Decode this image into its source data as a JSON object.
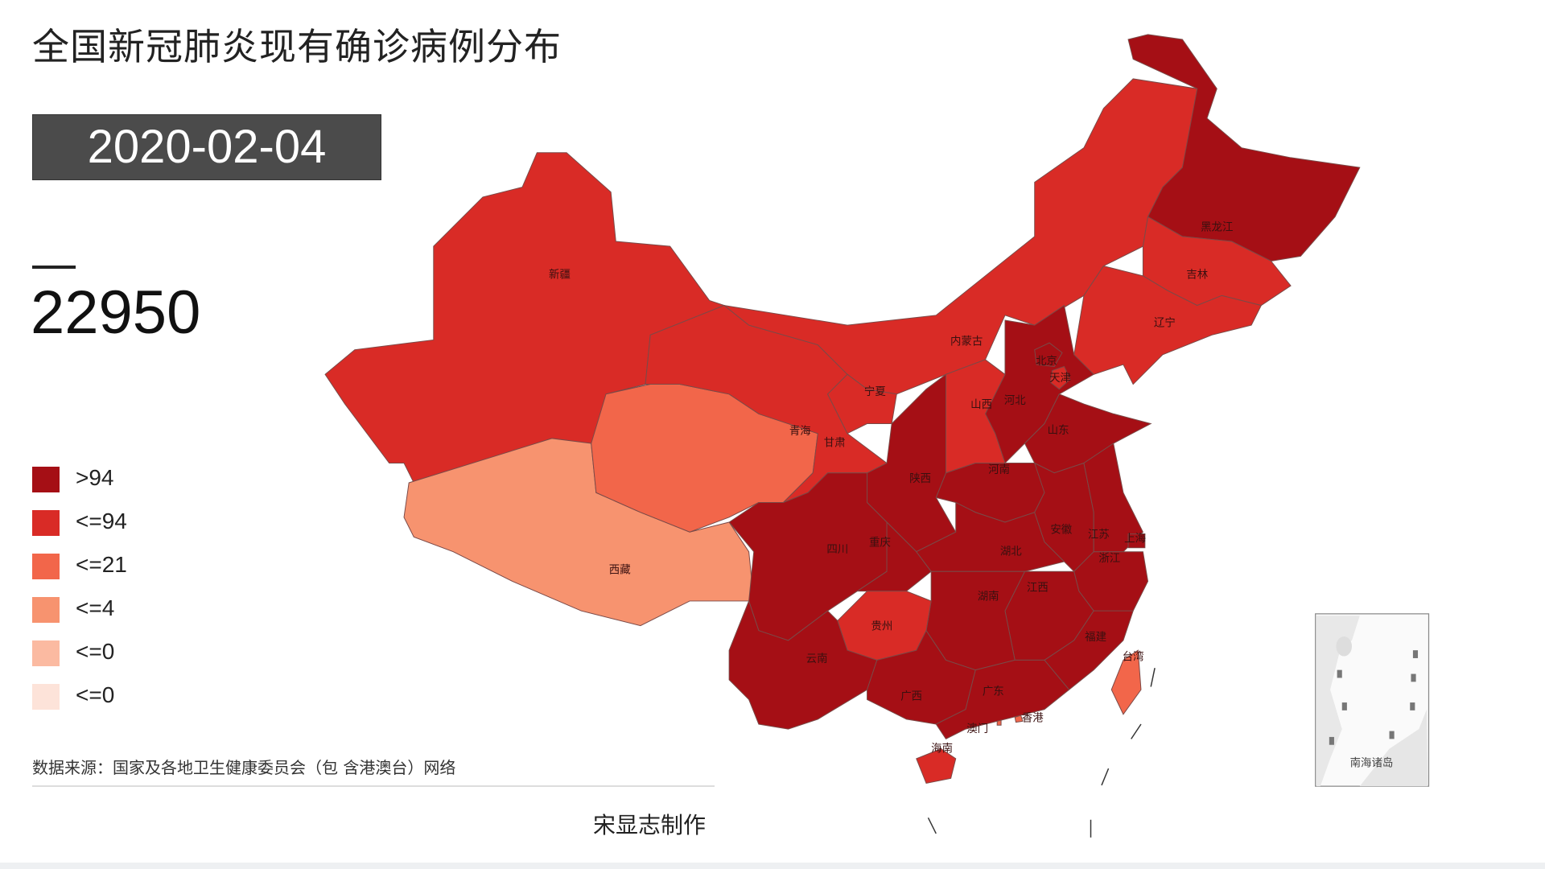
{
  "title": "全国新冠肺炎现有确诊病例分布",
  "date": "2020-02-04",
  "total": "22950",
  "legend": [
    {
      "label": ">94",
      "color": "#a50f15"
    },
    {
      "label": "<=94",
      "color": "#d92b26"
    },
    {
      "label": "<=21",
      "color": "#f2664a"
    },
    {
      "label": "<=4",
      "color": "#f7936f"
    },
    {
      "label": "<=0",
      "color": "#fbbaa1"
    },
    {
      "label": "<=0",
      "color": "#fde3d9"
    }
  ],
  "provinces": [
    {
      "id": "xinjiang",
      "name": "新疆",
      "level": 1
    },
    {
      "id": "xizang",
      "name": "西藏",
      "level": 3
    },
    {
      "id": "qinghai",
      "name": "青海",
      "level": 2
    },
    {
      "id": "gansu",
      "name": "甘肃",
      "level": 1
    },
    {
      "id": "neimenggu",
      "name": "内蒙古",
      "level": 1
    },
    {
      "id": "heilongjiang",
      "name": "黑龙江",
      "level": 0
    },
    {
      "id": "jilin",
      "name": "吉林",
      "level": 1
    },
    {
      "id": "liaoning",
      "name": "辽宁",
      "level": 1
    },
    {
      "id": "hebei",
      "name": "河北",
      "level": 0
    },
    {
      "id": "beijing",
      "name": "北京",
      "level": 0
    },
    {
      "id": "tianjin",
      "name": "天津",
      "level": 1
    },
    {
      "id": "shanxi",
      "name": "山西",
      "level": 1
    },
    {
      "id": "shandong",
      "name": "山东",
      "level": 0
    },
    {
      "id": "henan",
      "name": "河南",
      "level": 0
    },
    {
      "id": "shaanxi",
      "name": "陕西",
      "level": 0
    },
    {
      "id": "ningxia",
      "name": "宁夏",
      "level": 1
    },
    {
      "id": "sichuan",
      "name": "四川",
      "level": 0
    },
    {
      "id": "chongqing",
      "name": "重庆",
      "level": 0
    },
    {
      "id": "hubei",
      "name": "湖北",
      "level": 0
    },
    {
      "id": "anhui",
      "name": "安徽",
      "level": 0
    },
    {
      "id": "jiangsu",
      "name": "江苏",
      "level": 0
    },
    {
      "id": "shanghai",
      "name": "上海",
      "level": 0
    },
    {
      "id": "zhejiang",
      "name": "浙江",
      "level": 0
    },
    {
      "id": "jiangxi",
      "name": "江西",
      "level": 0
    },
    {
      "id": "fujian",
      "name": "福建",
      "level": 0
    },
    {
      "id": "hunan",
      "name": "湖南",
      "level": 0
    },
    {
      "id": "guizhou",
      "name": "贵州",
      "level": 1
    },
    {
      "id": "yunnan",
      "name": "云南",
      "level": 0
    },
    {
      "id": "guangxi",
      "name": "广西",
      "level": 0
    },
    {
      "id": "guangdong",
      "name": "广东",
      "level": 0
    },
    {
      "id": "hainan",
      "name": "海南",
      "level": 1
    },
    {
      "id": "taiwan",
      "name": "台湾",
      "level": 2
    },
    {
      "id": "xianggang",
      "name": "香港",
      "level": 2
    },
    {
      "id": "aomen",
      "name": "澳门",
      "level": 2
    }
  ],
  "inset_label": "南海诸岛",
  "source": "数据来源：国家及各地卫生健康委员会（包 含港澳台）网络",
  "author": "宋显志制作"
}
